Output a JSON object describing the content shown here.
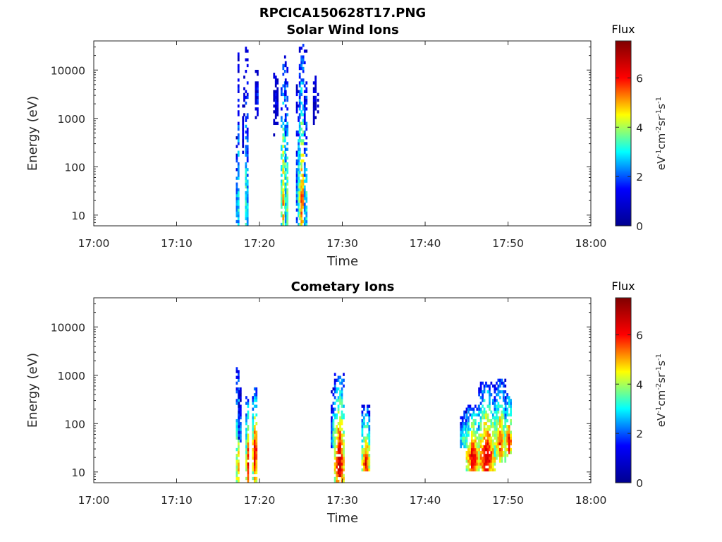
{
  "figure": {
    "title": "RPCICA150628T17.PNG"
  },
  "colormap": {
    "name": "jet",
    "stops": [
      "#00008f",
      "#0000ff",
      "#00ffff",
      "#ffff00",
      "#ff0000",
      "#800000"
    ]
  },
  "chart_data": [
    {
      "type": "heatmap",
      "title": "Solar Wind Ions",
      "xlabel": "Time",
      "ylabel": "Energy (eV)",
      "xlim": [
        "17:00",
        "18:00"
      ],
      "xticks": [
        "17:00",
        "17:10",
        "17:20",
        "17:30",
        "17:40",
        "17:50",
        "18:00"
      ],
      "yscale": "log",
      "ylim": [
        6,
        40000
      ],
      "yticks": [
        10,
        100,
        1000,
        10000
      ],
      "ytick_labels": [
        "10",
        "100",
        "1000",
        "10000"
      ],
      "colorbar": {
        "title": "Flux",
        "unit": "eV-1cm-2sr-1s-1",
        "range": [
          0,
          7.5
        ],
        "ticks": [
          0,
          2,
          4,
          6
        ],
        "tick_labels": [
          "0",
          "2",
          "4",
          "6"
        ]
      },
      "bursts": [
        {
          "t0": 17.15,
          "t1": 17.23,
          "e_min": 6,
          "e_max": 400,
          "peak": 4.0,
          "peak_energy": 20
        },
        {
          "t0": 17.35,
          "t1": 17.55,
          "e_min": 6,
          "e_max": 28000,
          "peak": 4.5,
          "peak_energy": 20
        },
        {
          "t0": 17.9,
          "t1": 18.0,
          "e_min": 100,
          "e_max": 2000,
          "peak": 1.5,
          "peak_energy": 500
        },
        {
          "t0": 18.05,
          "t1": 18.25,
          "e_min": 800,
          "e_max": 12000,
          "peak": 1.2,
          "peak_energy": 3000
        },
        {
          "t0": 18.25,
          "t1": 18.45,
          "e_min": 6,
          "e_max": 35000,
          "peak": 5.0,
          "peak_energy": 20
        },
        {
          "t0": 18.45,
          "t1": 18.65,
          "e_min": 6,
          "e_max": 30000,
          "peak": 4.0,
          "peak_energy": 20
        },
        {
          "t0": 19.45,
          "t1": 19.85,
          "e_min": 1000,
          "e_max": 10000,
          "peak": 1.5,
          "peak_energy": 3000
        },
        {
          "t0": 21.65,
          "t1": 22.1,
          "e_min": 300,
          "e_max": 12000,
          "peak": 1.4,
          "peak_energy": 3000
        },
        {
          "t0": 22.55,
          "t1": 23.05,
          "e_min": 6,
          "e_max": 20000,
          "peak": 5.5,
          "peak_energy": 25
        },
        {
          "t0": 23.05,
          "t1": 23.35,
          "e_min": 6,
          "e_max": 15000,
          "peak": 4.5,
          "peak_energy": 20
        },
        {
          "t0": 24.4,
          "t1": 24.75,
          "e_min": 6,
          "e_max": 8000,
          "peak": 3.5,
          "peak_energy": 30
        },
        {
          "t0": 24.75,
          "t1": 25.35,
          "e_min": 6,
          "e_max": 35000,
          "peak": 6.0,
          "peak_energy": 20
        },
        {
          "t0": 25.35,
          "t1": 25.6,
          "e_min": 6,
          "e_max": 25000,
          "peak": 4.0,
          "peak_energy": 20
        },
        {
          "t0": 26.45,
          "t1": 26.7,
          "e_min": 400,
          "e_max": 10000,
          "peak": 1.5,
          "peak_energy": 3000
        },
        {
          "t0": 26.95,
          "t1": 27.15,
          "e_min": 400,
          "e_max": 6000,
          "peak": 1.3,
          "peak_energy": 3000
        }
      ]
    },
    {
      "type": "heatmap",
      "title": "Cometary Ions",
      "xlabel": "Time",
      "ylabel": "Energy (eV)",
      "xlim": [
        "17:00",
        "18:00"
      ],
      "xticks": [
        "17:00",
        "17:10",
        "17:20",
        "17:30",
        "17:40",
        "17:50",
        "18:00"
      ],
      "yscale": "log",
      "ylim": [
        6,
        40000
      ],
      "yticks": [
        10,
        100,
        1000,
        10000
      ],
      "ytick_labels": [
        "10",
        "100",
        "1000",
        "10000"
      ],
      "colorbar": {
        "title": "Flux",
        "unit": "eV-1cm-2sr-1s-1",
        "range": [
          0,
          7.5
        ],
        "ticks": [
          0,
          2,
          4,
          6
        ],
        "tick_labels": [
          "0",
          "2",
          "4",
          "6"
        ]
      },
      "bursts": [
        {
          "t0": 17.15,
          "t1": 17.4,
          "e_min": 6,
          "e_max": 1600,
          "peak": 6.5,
          "peak_energy": 12
        },
        {
          "t0": 17.4,
          "t1": 17.7,
          "e_min": 40,
          "e_max": 600,
          "peak": 2.5,
          "peak_energy": 80
        },
        {
          "t0": 18.3,
          "t1": 18.7,
          "e_min": 6,
          "e_max": 400,
          "peak": 6.5,
          "peak_energy": 15
        },
        {
          "t0": 19.1,
          "t1": 19.65,
          "e_min": 6,
          "e_max": 600,
          "peak": 7.2,
          "peak_energy": 25
        },
        {
          "t0": 28.6,
          "t1": 29.0,
          "e_min": 30,
          "e_max": 550,
          "peak": 3.5,
          "peak_energy": 60
        },
        {
          "t0": 29.0,
          "t1": 30.1,
          "e_min": 6,
          "e_max": 1100,
          "peak": 7.2,
          "peak_energy": 15
        },
        {
          "t0": 32.3,
          "t1": 33.2,
          "e_min": 10,
          "e_max": 250,
          "peak": 6.5,
          "peak_energy": 15
        },
        {
          "t0": 44.2,
          "t1": 44.9,
          "e_min": 30,
          "e_max": 200,
          "peak": 4.0,
          "peak_energy": 50
        },
        {
          "t0": 44.9,
          "t1": 46.4,
          "e_min": 10,
          "e_max": 250,
          "peak": 6.8,
          "peak_energy": 20
        },
        {
          "t0": 46.4,
          "t1": 48.3,
          "e_min": 10,
          "e_max": 700,
          "peak": 7.0,
          "peak_energy": 20
        },
        {
          "t0": 48.3,
          "t1": 49.6,
          "e_min": 15,
          "e_max": 900,
          "peak": 6.0,
          "peak_energy": 40
        },
        {
          "t0": 49.6,
          "t1": 50.4,
          "e_min": 20,
          "e_max": 450,
          "peak": 6.5,
          "peak_energy": 40
        }
      ]
    }
  ]
}
